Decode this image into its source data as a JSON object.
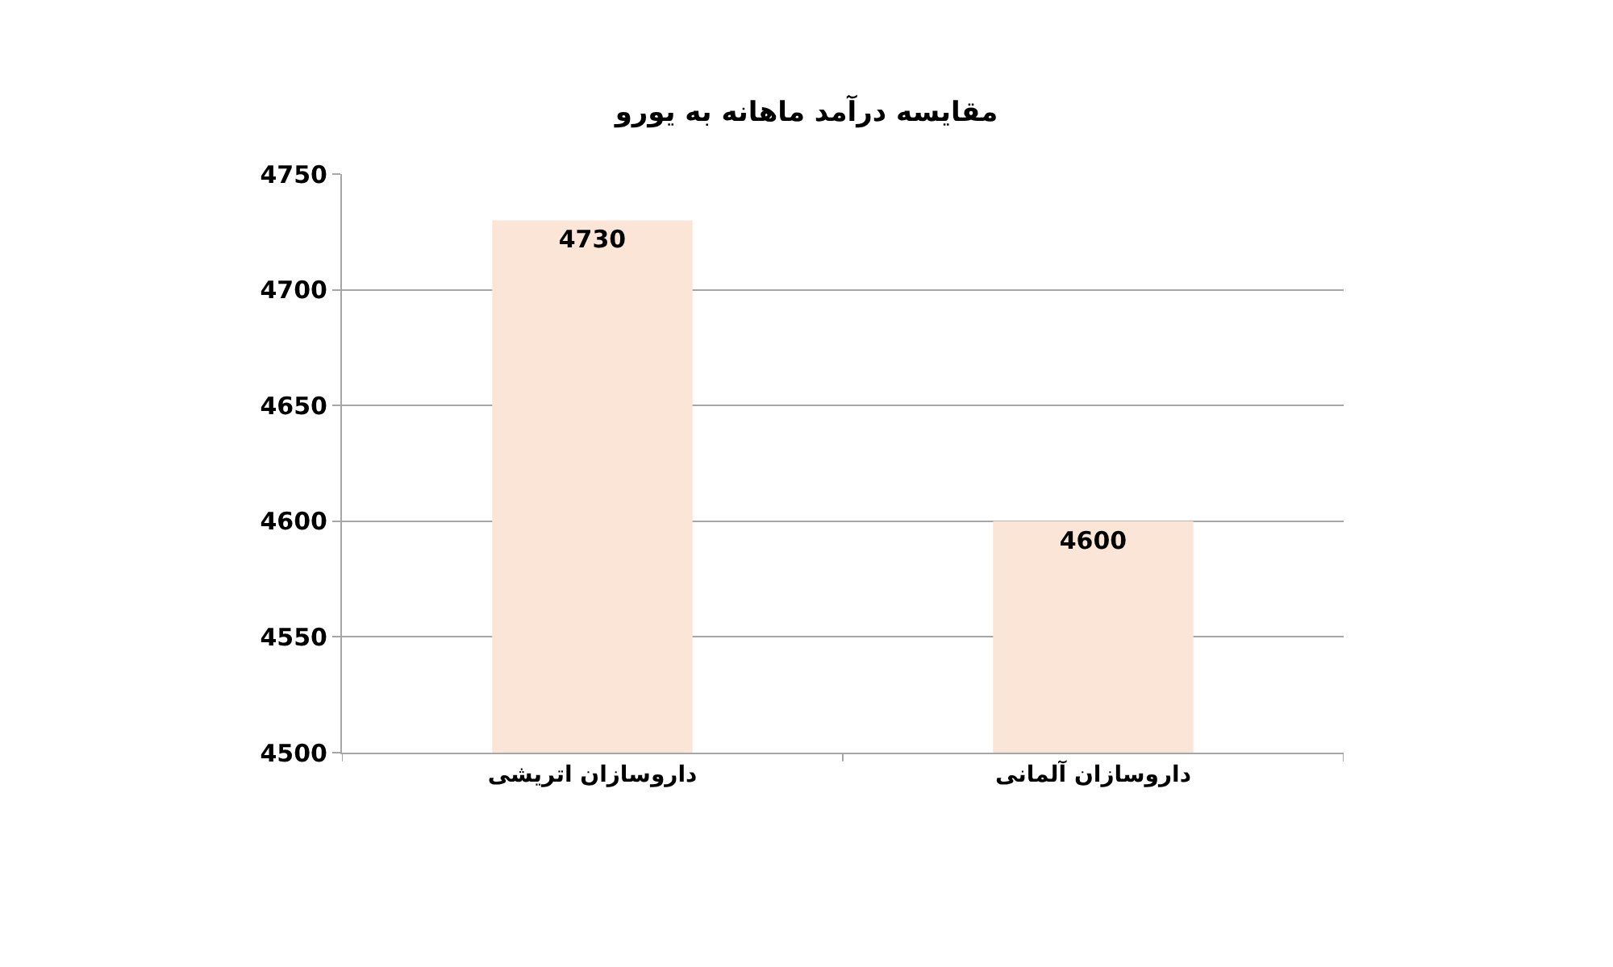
{
  "chart_data": {
    "type": "bar",
    "title": "مقایسه درآمد ماهانه به یورو",
    "categories": [
      "داروسازان اتریشی",
      "داروسازان آلمانی"
    ],
    "values": [
      4730,
      4600
    ],
    "color": "#fbe5d6",
    "ylim": [
      4500,
      4750
    ],
    "yticks": [
      4500,
      4550,
      4600,
      4650,
      4700,
      4750
    ],
    "grid": "y",
    "data_labels": true
  }
}
